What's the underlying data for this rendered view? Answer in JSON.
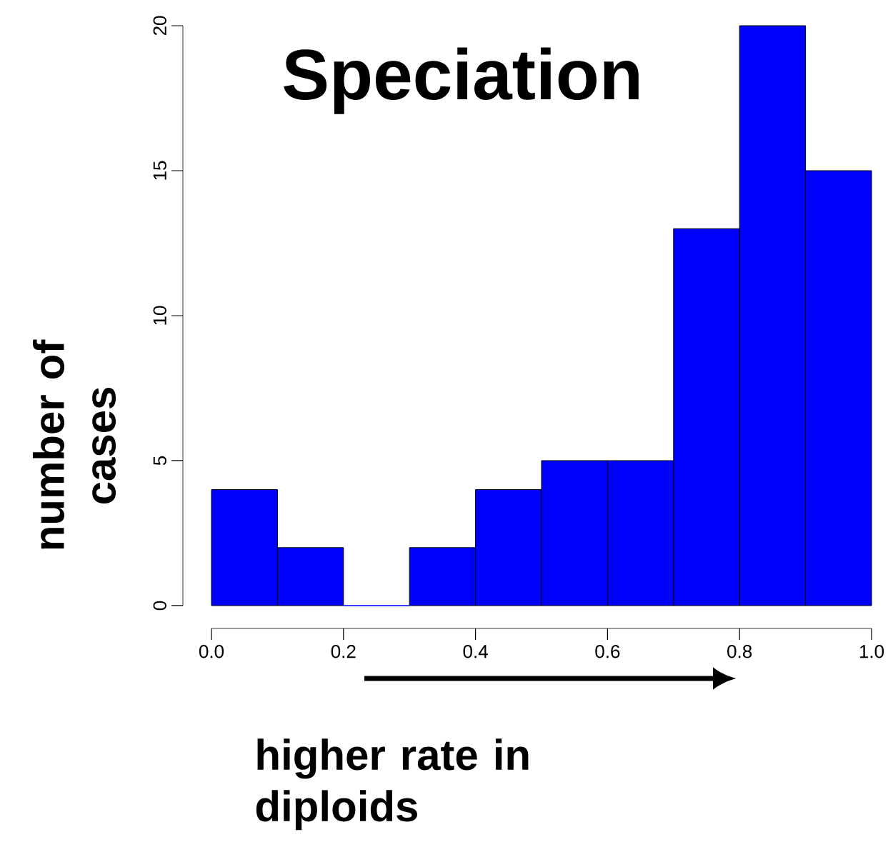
{
  "chart_data": {
    "type": "histogram",
    "title": "Speciation",
    "xlabel": "higher rate in diploids",
    "ylabel": "number of cases",
    "bins": [
      0,
      0.1,
      0.2,
      0.3,
      0.4,
      0.5,
      0.6,
      0.7,
      0.8,
      0.9,
      1.0
    ],
    "values": [
      4,
      2,
      0,
      2,
      4,
      5,
      5,
      13,
      20,
      15
    ],
    "color": "#0000ff",
    "xlim": [
      0,
      1
    ],
    "ylim": [
      0,
      20
    ],
    "xticks": [
      {
        "value": 0,
        "label": "0.0"
      },
      {
        "value": 0.2,
        "label": "0.2"
      },
      {
        "value": 0.4,
        "label": "0.4"
      },
      {
        "value": 0.6,
        "label": "0.6"
      },
      {
        "value": 0.8,
        "label": "0.8"
      },
      {
        "value": 1.0,
        "label": "1.0"
      }
    ],
    "yticks": [
      0,
      5,
      10,
      15,
      20
    ],
    "grid": false
  }
}
